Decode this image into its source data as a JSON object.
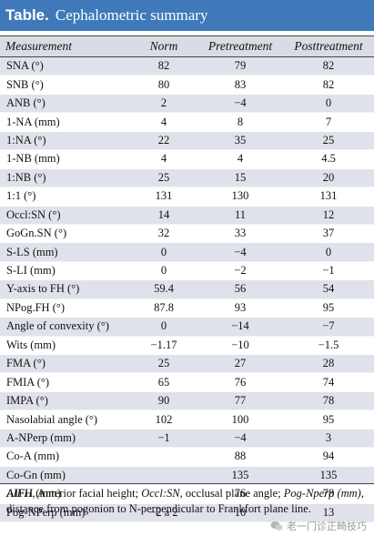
{
  "title": {
    "label": "Table.",
    "caption": "Cephalometric summary"
  },
  "columns": [
    "Measurement",
    "Norm",
    "Pretreatment",
    "Posttreatment"
  ],
  "rows": [
    {
      "measure": "SNA (°)",
      "norm": "82",
      "pre": "79",
      "post": "82"
    },
    {
      "measure": "SNB (°)",
      "norm": "80",
      "pre": "83",
      "post": "82"
    },
    {
      "measure": "ANB (°)",
      "norm": "2",
      "pre": "−4",
      "post": "0"
    },
    {
      "measure": "1-NA (mm)",
      "norm": "4",
      "pre": "8",
      "post": "7"
    },
    {
      "measure": "1:NA (°)",
      "norm": "22",
      "pre": "35",
      "post": "25"
    },
    {
      "measure": "1-NB (mm)",
      "norm": "4",
      "pre": "4",
      "post": "4.5"
    },
    {
      "measure": "1:NB (°)",
      "norm": "25",
      "pre": "15",
      "post": "20"
    },
    {
      "measure": "1:1 (°)",
      "norm": "131",
      "pre": "130",
      "post": "131"
    },
    {
      "measure": "Occl:SN (°)",
      "norm": "14",
      "pre": "11",
      "post": "12"
    },
    {
      "measure": "GoGn.SN (°)",
      "norm": "32",
      "pre": "33",
      "post": "37"
    },
    {
      "measure": "S-LS (mm)",
      "norm": "0",
      "pre": "−4",
      "post": "0"
    },
    {
      "measure": "S-LI (mm)",
      "norm": "0",
      "pre": "−2",
      "post": "−1"
    },
    {
      "measure": "Y-axis to FH (°)",
      "norm": "59.4",
      "pre": "56",
      "post": "54"
    },
    {
      "measure": "NPog.FH (°)",
      "norm": "87.8",
      "pre": "93",
      "post": "95"
    },
    {
      "measure": "Angle of convexity (°)",
      "norm": "0",
      "pre": "−14",
      "post": "−7"
    },
    {
      "measure": "Wits (mm)",
      "norm": "−1.17",
      "pre": "−10",
      "post": "−1.5"
    },
    {
      "measure": "FMA (°)",
      "norm": "25",
      "pre": "27",
      "post": "28"
    },
    {
      "measure": "FMIA (°)",
      "norm": "65",
      "pre": "76",
      "post": "74"
    },
    {
      "measure": "IMPA (°)",
      "norm": "90",
      "pre": "77",
      "post": "78"
    },
    {
      "measure": "Nasolabial angle (°)",
      "norm": "102",
      "pre": "100",
      "post": "95"
    },
    {
      "measure": "A-NPerp (mm)",
      "norm": "−1",
      "pre": "−4",
      "post": "3"
    },
    {
      "measure": "Co-A (mm)",
      "norm": "",
      "pre": "88",
      "post": "94"
    },
    {
      "measure": "Co-Gn (mm)",
      "norm": "",
      "pre": "135",
      "post": "135"
    },
    {
      "measure": "AIFH (mm)",
      "norm": "",
      "pre": "76",
      "post": "78"
    },
    {
      "measure": "Pog-NPerp (mm)",
      "norm": "−2 a 2",
      "pre": "10",
      "post": "13"
    }
  ],
  "footnote": {
    "t1": "AIFH,",
    "t2": " Anterior facial height; ",
    "t3": "Occl:SN,",
    "t4": " occlusal plane angle; ",
    "t5": "Pog-Nperp (mm),",
    "t6": " distance from pogonion to N-perpendicular to Frankfort plane line."
  },
  "watermark": {
    "text": "老一门诊正畸技巧"
  }
}
